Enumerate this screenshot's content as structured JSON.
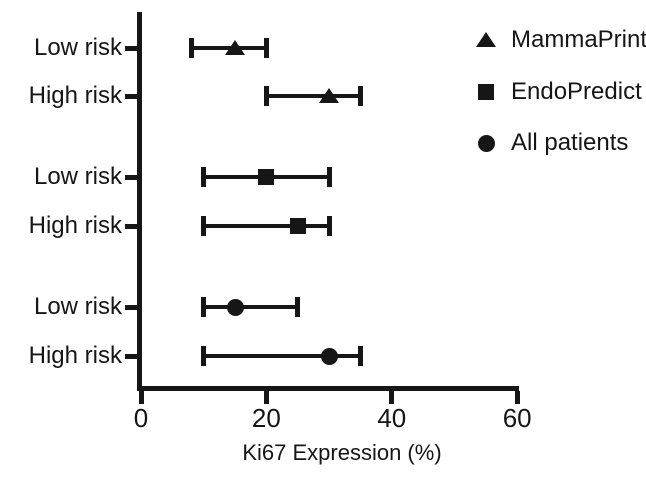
{
  "chart_data": {
    "type": "scatter",
    "subtype": "horizontal-error-bar-forest-plot",
    "title": "",
    "xlabel": "Ki67 Expression (%)",
    "ylabel": "",
    "xlim": [
      0,
      60
    ],
    "xticks": [
      0,
      20,
      40,
      60
    ],
    "grid": false,
    "legend_position": "top-right",
    "ink_color": "#161616",
    "background_color": "#ffffff",
    "groups": [
      {
        "name": "MammaPrint",
        "marker": "triangle",
        "rows": [
          {
            "label": "Low risk",
            "value": 15,
            "err_low": 8,
            "err_high": 20
          },
          {
            "label": "High risk",
            "value": 30,
            "err_low": 20,
            "err_high": 35
          }
        ]
      },
      {
        "name": "EndoPredict",
        "marker": "square",
        "rows": [
          {
            "label": "Low risk",
            "value": 20,
            "err_low": 10,
            "err_high": 30
          },
          {
            "label": "High risk",
            "value": 25,
            "err_low": 10,
            "err_high": 30
          }
        ]
      },
      {
        "name": "All patients",
        "marker": "circle",
        "rows": [
          {
            "label": "Low risk",
            "value": 15,
            "err_low": 10,
            "err_high": 25
          },
          {
            "label": "High risk",
            "value": 30,
            "err_low": 10,
            "err_high": 35
          }
        ]
      }
    ],
    "legend": [
      {
        "label": "MammaPrint",
        "marker": "triangle"
      },
      {
        "label": "EndoPredict",
        "marker": "square"
      },
      {
        "label": "All patients",
        "marker": "circle"
      }
    ]
  }
}
